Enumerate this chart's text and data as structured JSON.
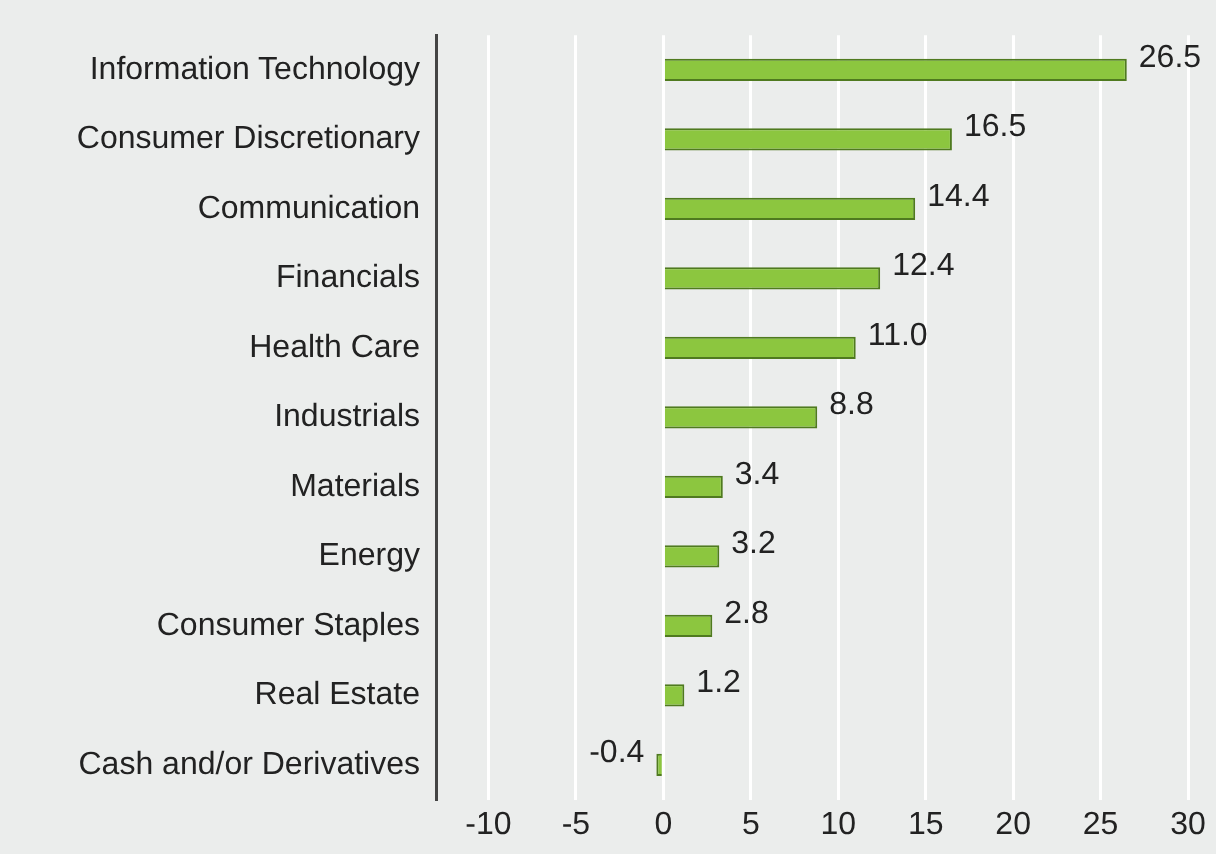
{
  "chart_data": {
    "type": "bar",
    "orientation": "horizontal",
    "categories": [
      "Information Technology",
      "Consumer Discretionary",
      "Communication",
      "Financials",
      "Health Care",
      "Industrials",
      "Materials",
      "Energy",
      "Consumer Staples",
      "Real Estate",
      "Cash and/or Derivatives"
    ],
    "values": [
      26.5,
      16.5,
      14.4,
      12.4,
      11.0,
      8.8,
      3.4,
      3.2,
      2.8,
      1.2,
      -0.4
    ],
    "value_labels": [
      "26.5",
      "16.5",
      "14.4",
      "12.4",
      "11.0",
      "8.8",
      "3.4",
      "3.2",
      "2.8",
      "1.2",
      "-0.4"
    ],
    "color": "#8cc63f",
    "xlim": [
      -13,
      30
    ],
    "xticks": [
      -10,
      -5,
      0,
      5,
      10,
      15,
      20,
      25,
      30
    ],
    "grid": "x",
    "legend": false
  }
}
